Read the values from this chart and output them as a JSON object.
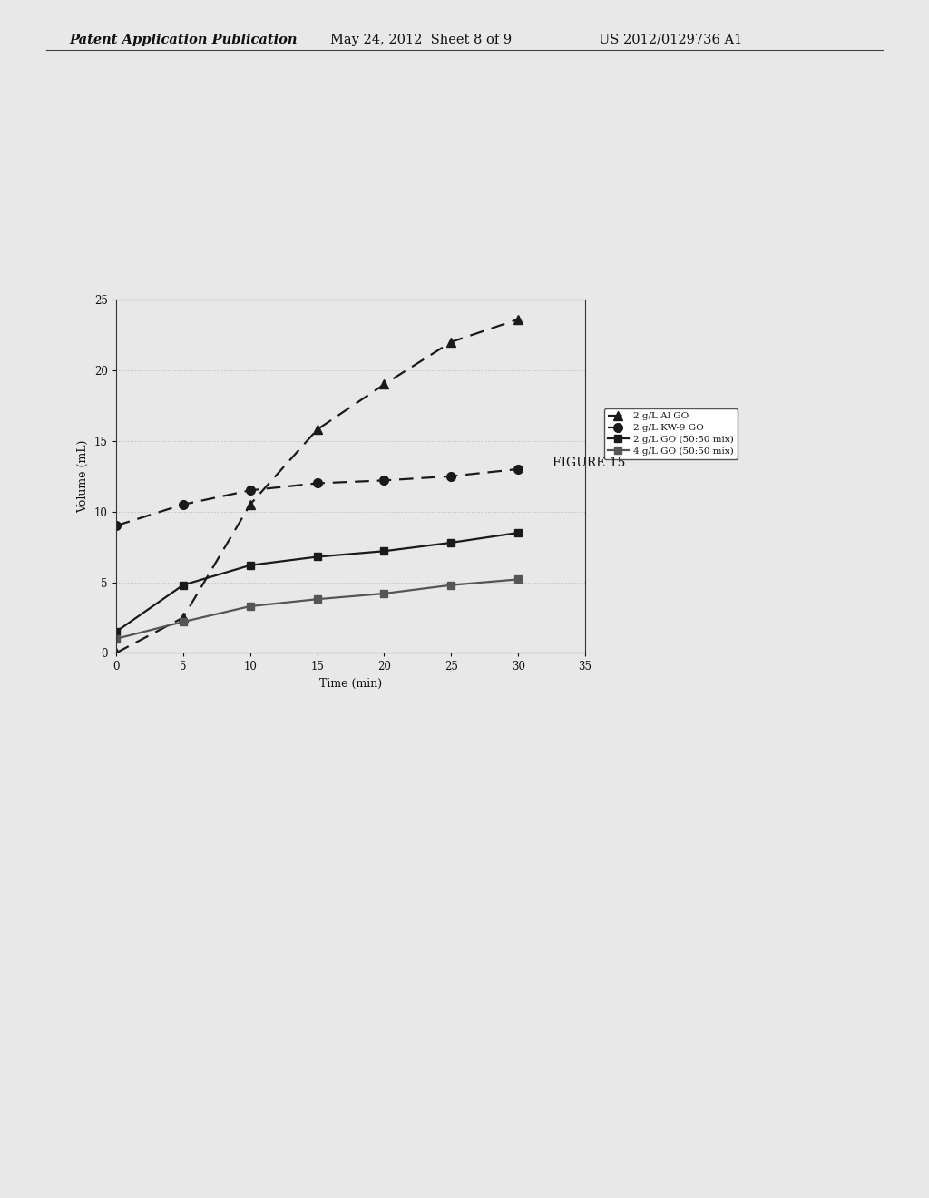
{
  "title": "FIGURE 15",
  "xlabel": "Time (min)",
  "ylabel": "Volume (mL)",
  "xlim": [
    0,
    35
  ],
  "ylim": [
    0,
    25
  ],
  "xticks": [
    0,
    5,
    10,
    15,
    20,
    25,
    30,
    35
  ],
  "yticks": [
    0,
    5,
    10,
    15,
    20,
    25
  ],
  "series": [
    {
      "label": "2 g/L Al GO",
      "x": [
        0,
        5,
        10,
        15,
        20,
        25,
        30
      ],
      "y": [
        0.0,
        2.5,
        10.5,
        15.8,
        19.0,
        22.0,
        23.6
      ],
      "color": "#1a1a1a",
      "linestyle": "dashed",
      "marker": "^",
      "markersize": 7,
      "linewidth": 1.6,
      "dashes": [
        7,
        4
      ]
    },
    {
      "label": "2 g/L KW-9 GO",
      "x": [
        0,
        5,
        10,
        15,
        20,
        25,
        30
      ],
      "y": [
        9.0,
        10.5,
        11.5,
        12.0,
        12.2,
        12.5,
        13.0
      ],
      "color": "#1a1a1a",
      "linestyle": "dashed",
      "marker": "o",
      "markersize": 7,
      "linewidth": 1.6,
      "dashes": [
        7,
        4
      ]
    },
    {
      "label": "2 g/L GO (50:50 mix)",
      "x": [
        0,
        5,
        10,
        15,
        20,
        25,
        30
      ],
      "y": [
        1.5,
        4.8,
        6.2,
        6.8,
        7.2,
        7.8,
        8.5
      ],
      "color": "#1a1a1a",
      "linestyle": "solid",
      "marker": "s",
      "markersize": 6,
      "linewidth": 1.6,
      "dashes": null
    },
    {
      "label": "4 g/L GO (50:50 mix)",
      "x": [
        0,
        5,
        10,
        15,
        20,
        25,
        30
      ],
      "y": [
        1.0,
        2.2,
        3.3,
        3.8,
        4.2,
        4.8,
        5.2
      ],
      "color": "#1a1a1a",
      "linestyle": "solid",
      "marker": "s",
      "markersize": 6,
      "linewidth": 1.6,
      "dashes": null
    }
  ],
  "figure_label": "FIGURE 15",
  "header_left": "Patent Application Publication",
  "header_center": "May 24, 2012  Sheet 8 of 9",
  "header_right": "US 2012/0129736 A1",
  "grid_color": "#bbbbbb",
  "background_color": "#e8e8e8",
  "plot_bg_color": "#e8e8e8"
}
